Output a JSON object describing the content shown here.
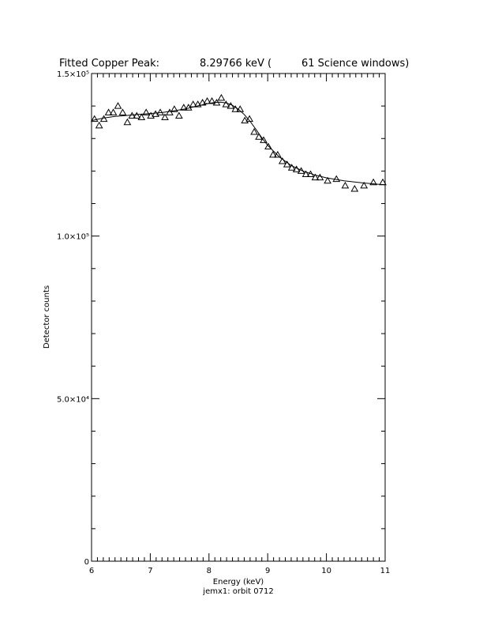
{
  "chart_data": {
    "type": "scatter",
    "title_parts": [
      "Fitted Copper Peak:",
      "8.29766 keV (",
      "61 Science windows)"
    ],
    "xlabel": "Energy (keV)",
    "subcaption": "jemx1: orbit 0712",
    "ylabel": "Detector counts",
    "xlim": [
      6,
      11
    ],
    "ylim": [
      0,
      150000
    ],
    "x_tick_values": [
      6,
      7,
      8,
      9,
      10,
      11
    ],
    "x_tick_labels": [
      "6",
      "7",
      "8",
      "9",
      "10",
      "11"
    ],
    "y_tick_values": [
      0,
      50000,
      100000,
      150000
    ],
    "y_tick_labels": [
      "0",
      "5.0×10⁴",
      "1.0×10⁵",
      "1.5×10⁵"
    ],
    "marker": "triangle",
    "series": [
      {
        "kind": "points",
        "x": [
          6.05,
          6.13,
          6.21,
          6.29,
          6.37,
          6.45,
          6.53,
          6.61,
          6.69,
          6.77,
          6.85,
          6.93,
          7.01,
          7.09,
          7.17,
          7.25,
          7.33,
          7.41,
          7.49,
          7.57,
          7.65,
          7.73,
          7.81,
          7.89,
          7.97,
          8.05,
          8.13,
          8.21,
          8.29,
          8.37,
          8.45,
          8.53,
          8.61,
          8.69,
          8.77,
          8.85,
          8.93,
          9.01,
          9.09,
          9.17,
          9.25,
          9.33,
          9.41,
          9.49,
          9.57,
          9.65,
          9.73,
          9.81,
          9.89,
          10.02,
          10.17,
          10.32,
          10.48,
          10.64,
          10.8,
          10.96
        ],
        "y": [
          136000,
          134000,
          136000,
          138000,
          138000,
          140000,
          138000,
          135000,
          137000,
          137000,
          136500,
          138000,
          137000,
          137500,
          138000,
          136500,
          138000,
          139000,
          137000,
          139500,
          139500,
          140500,
          140500,
          141000,
          141500,
          141500,
          141000,
          142500,
          140500,
          140000,
          139000,
          139000,
          135500,
          136000,
          132000,
          130500,
          129500,
          127500,
          125000,
          125000,
          123000,
          122000,
          121000,
          120500,
          120000,
          119000,
          119000,
          118000,
          118000,
          117000,
          117500,
          115500,
          114500,
          115500,
          116500,
          116500
        ]
      },
      {
        "kind": "fit",
        "x": [
          6.0,
          6.2,
          6.4,
          6.6,
          6.8,
          7.0,
          7.2,
          7.4,
          7.6,
          7.8,
          8.0,
          8.1,
          8.2,
          8.3,
          8.4,
          8.5,
          8.6,
          8.7,
          8.8,
          8.9,
          9.0,
          9.2,
          9.4,
          9.6,
          9.8,
          10.0,
          10.3,
          10.6,
          10.9,
          11.0
        ],
        "y": [
          135500,
          136300,
          136800,
          137100,
          137400,
          137700,
          138000,
          138500,
          139100,
          140000,
          140800,
          141100,
          141200,
          140900,
          140200,
          139000,
          137400,
          135300,
          132800,
          130200,
          127900,
          124300,
          121700,
          120000,
          118800,
          117900,
          117000,
          116400,
          115900,
          115800
        ]
      }
    ]
  }
}
